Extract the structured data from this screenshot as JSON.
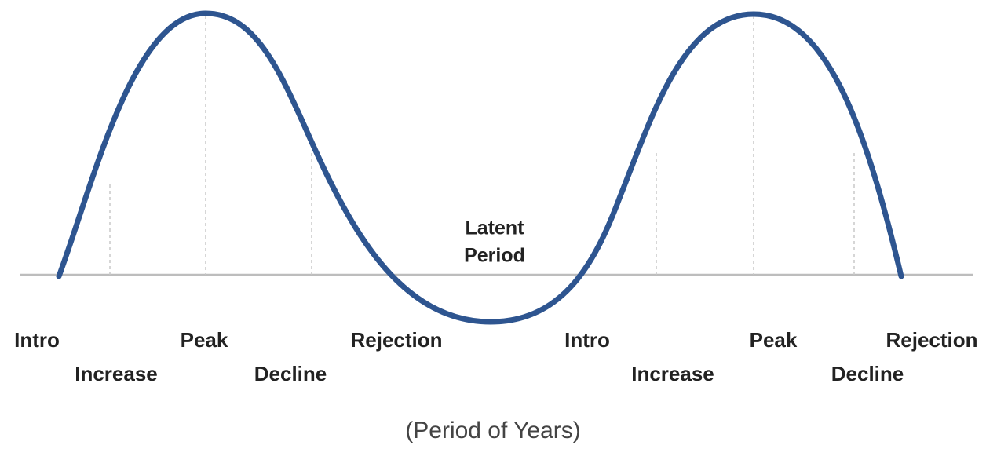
{
  "stages": [
    "Intro",
    "Increase",
    "Peak",
    "Decline",
    "Rejection",
    "Intro",
    "Increase",
    "Peak",
    "Decline",
    "Rejection"
  ],
  "latent_label": [
    "Latent",
    "Period"
  ],
  "axis_label": "(Period of Years)"
}
